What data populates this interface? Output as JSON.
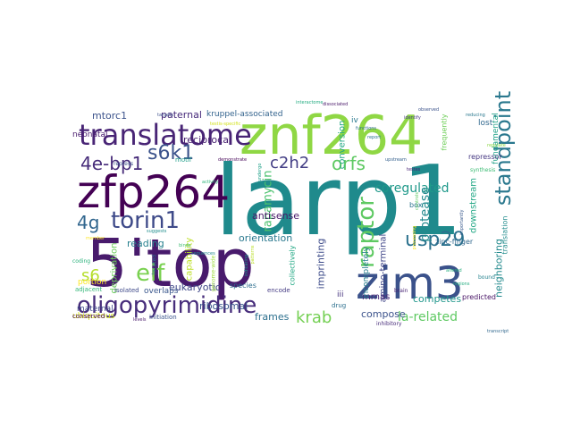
{
  "words": [
    {
      "text": "larp1",
      "color": "#1f8a8c"
    },
    {
      "text": "5'top",
      "color": "#481a6c"
    },
    {
      "text": "znf264",
      "color": "#8fd744"
    },
    {
      "text": "zfp264",
      "color": "#440154"
    },
    {
      "text": "zim3",
      "color": "#3b528b"
    },
    {
      "text": "translatome",
      "color": "#482475"
    },
    {
      "text": "oligopyrimidine",
      "color": "#472d7b"
    },
    {
      "text": "standpoint",
      "color": "#2a788e"
    },
    {
      "text": "torin1",
      "color": "#3e4a89"
    },
    {
      "text": "raptor",
      "color": "#5ec962"
    },
    {
      "text": "usp29",
      "color": "#2c728e"
    },
    {
      "text": "eif",
      "color": "#7ad151"
    },
    {
      "text": "s6k1",
      "color": "#3b528b"
    },
    {
      "text": "4e-bp1",
      "color": "#472c7a"
    },
    {
      "text": "4g",
      "color": "#31668e"
    },
    {
      "text": "orfs",
      "color": "#5ec962"
    },
    {
      "text": "c2h2",
      "color": "#433e85"
    },
    {
      "text": "krab",
      "color": "#75d054"
    },
    {
      "text": "s6",
      "color": "#b5de2b"
    },
    {
      "text": "coregulated",
      "color": "#1f998a"
    },
    {
      "text": "protease",
      "color": "#23898e"
    },
    {
      "text": "rapamycin",
      "color": "#4ac16d"
    },
    {
      "text": "la-related",
      "color": "#5ec962"
    },
    {
      "text": "neighboring",
      "color": "#238a8d"
    },
    {
      "text": "mtorc1",
      "color": "#3b528b"
    },
    {
      "text": "paternal",
      "color": "#472a7a"
    },
    {
      "text": "kruppel-associated",
      "color": "#33638d"
    },
    {
      "text": "reciprocal",
      "color": "#482071"
    },
    {
      "text": "antisense",
      "color": "#481769"
    },
    {
      "text": "imprinting",
      "color": "#3e4c8a"
    },
    {
      "text": "orientation",
      "color": "#29788e"
    },
    {
      "text": "reading",
      "color": "#27808e"
    },
    {
      "text": "ribosomal",
      "color": "#39568c"
    },
    {
      "text": "frames",
      "color": "#2d708e"
    },
    {
      "text": "compose",
      "color": "#3b528b"
    },
    {
      "text": "competes",
      "color": "#1f968b"
    },
    {
      "text": "eukaryotic",
      "color": "#3f4788"
    },
    {
      "text": "amino-terminal",
      "color": "#404688"
    },
    {
      "text": "conversion",
      "color": "#22a884"
    },
    {
      "text": "downstream",
      "color": "#22a785"
    },
    {
      "text": "fundamental",
      "color": "#1fa187"
    },
    {
      "text": "mrnas",
      "color": "#482878"
    },
    {
      "text": "capability",
      "color": "#bddf26"
    },
    {
      "text": "deprivation",
      "color": "#6ccd5a"
    },
    {
      "text": "overlaps",
      "color": "#39568c"
    },
    {
      "text": "portion",
      "color": "#fde725"
    },
    {
      "text": "neonatal",
      "color": "#481b6d"
    },
    {
      "text": "maternal",
      "color": "#3f4889"
    },
    {
      "text": "ubiquitous",
      "color": "#d0e11c"
    },
    {
      "text": "lost",
      "color": "#31688e"
    },
    {
      "text": "iv",
      "color": "#2a788e"
    },
    {
      "text": "iii",
      "color": "#46337e"
    },
    {
      "text": "box",
      "color": "#2c728e"
    },
    {
      "text": "species",
      "color": "#2e6e8e"
    },
    {
      "text": "incompletely",
      "color": "#277f8e"
    },
    {
      "text": "collectively",
      "color": "#22a884"
    },
    {
      "text": "translation",
      "color": "#228c8d"
    },
    {
      "text": "repressor",
      "color": "#453781"
    },
    {
      "text": "predicted",
      "color": "#471365"
    },
    {
      "text": "zinc-finger",
      "color": "#31688e"
    },
    {
      "text": "frequently",
      "color": "#6ece58"
    },
    {
      "text": "motif",
      "color": "#1f9e89"
    },
    {
      "text": "encode",
      "color": "#443a83"
    },
    {
      "text": "drug",
      "color": "#2d708e"
    },
    {
      "text": "adjacent",
      "color": "#35b779"
    },
    {
      "text": "initiation",
      "color": "#3a548c"
    },
    {
      "text": "conserved",
      "color": "#440154"
    },
    {
      "text": "isolated",
      "color": "#3e4989"
    },
    {
      "text": "located",
      "color": "#2a768e"
    },
    {
      "text": "inhibitory",
      "color": "#472c7a"
    },
    {
      "text": "brain",
      "color": "#482374"
    },
    {
      "text": "bound",
      "color": "#26828e"
    },
    {
      "text": "synthesis",
      "color": "#3dbc74"
    },
    {
      "text": "coding",
      "color": "#2db27d"
    },
    {
      "text": "repress",
      "color": "#3c4f8a"
    },
    {
      "text": "genome-wide",
      "color": "#9bd93c"
    },
    {
      "text": "identify",
      "color": "#453882"
    },
    {
      "text": "observed",
      "color": "#3b528b"
    },
    {
      "text": "testis-specific",
      "color": "#d2e21b"
    },
    {
      "text": "functions",
      "color": "#2f6b8e"
    },
    {
      "text": "regulate",
      "color": "#8bd646"
    },
    {
      "text": "reducing",
      "color": "#2a788e"
    },
    {
      "text": "undergo",
      "color": "#1fa088"
    },
    {
      "text": "indicating",
      "color": "#20928c"
    },
    {
      "text": "processing",
      "color": "#fde725"
    },
    {
      "text": "importantly",
      "color": "#38588c"
    },
    {
      "text": "controls",
      "color": "#5cc863"
    },
    {
      "text": "testes",
      "color": "#482475"
    },
    {
      "text": "report",
      "color": "#2b748e"
    },
    {
      "text": "sequences",
      "color": "#24878e"
    },
    {
      "text": "targets",
      "color": "#3c4f8a"
    },
    {
      "text": "demonstrate",
      "color": "#440256"
    },
    {
      "text": "patterns",
      "color": "#bade28"
    },
    {
      "text": "levels",
      "color": "#48186a"
    },
    {
      "text": "transcript",
      "color": "#31688e"
    },
    {
      "text": "interactome",
      "color": "#25ac82"
    },
    {
      "text": "suggests",
      "color": "#218e8d"
    },
    {
      "text": "dissociated",
      "color": "#481769"
    },
    {
      "text": "upstream",
      "color": "#34608d"
    },
    {
      "text": "regions",
      "color": "#26ad81"
    },
    {
      "text": "binds",
      "color": "#3fbc73"
    },
    {
      "text": "altered",
      "color": "#2ab07f"
    },
    {
      "text": "member",
      "color": "#fde725"
    },
    {
      "text": "activity",
      "color": "#31b57b"
    }
  ]
}
